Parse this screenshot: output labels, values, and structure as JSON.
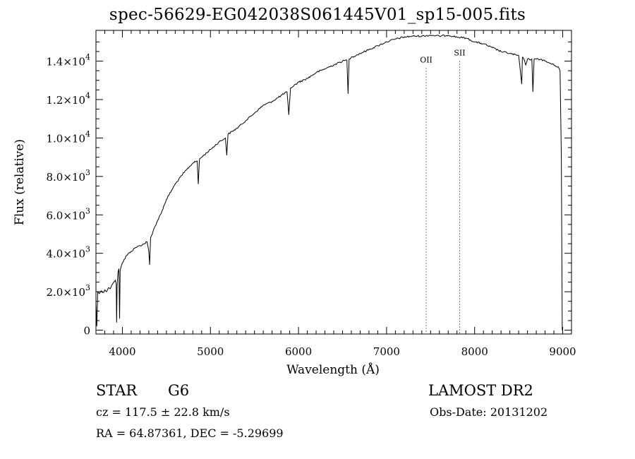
{
  "chart_data": {
    "type": "line",
    "title": "spec-56629-EG042038S061445V01_sp15-005.fits",
    "xlabel": "Wavelength (Å)",
    "ylabel": "Flux (relative)",
    "xlim": [
      3700,
      9100
    ],
    "ylim": [
      -200,
      15600
    ],
    "x_ticks": [
      4000,
      5000,
      6000,
      7000,
      8000,
      9000
    ],
    "x_tick_labels": [
      "4000",
      "5000",
      "6000",
      "7000",
      "8000",
      "9000"
    ],
    "y_ticks": [
      0,
      2000,
      4000,
      6000,
      8000,
      10000,
      12000,
      14000
    ],
    "y_tick_labels": [
      {
        "mant": "0",
        "exp": ""
      },
      {
        "mant": "2.0×10",
        "exp": "3"
      },
      {
        "mant": "4.0×10",
        "exp": "3"
      },
      {
        "mant": "6.0×10",
        "exp": "3"
      },
      {
        "mant": "8.0×10",
        "exp": "3"
      },
      {
        "mant": "1.0×10",
        "exp": "4"
      },
      {
        "mant": "1.2×10",
        "exp": "4"
      },
      {
        "mant": "1.4×10",
        "exp": "4"
      }
    ],
    "grid": false,
    "series": [
      {
        "x": [
          3700,
          3710,
          3720,
          3740,
          3760,
          3780,
          3800,
          3820,
          3840,
          3860,
          3880,
          3900,
          3920,
          3930,
          3935,
          3940,
          3950,
          3960,
          3968,
          3975,
          3985,
          4000,
          4050,
          4100,
          4150,
          4200,
          4250,
          4280,
          4300,
          4310,
          4320,
          4340,
          4360,
          4400,
          4450,
          4500,
          4600,
          4700,
          4800,
          4850,
          4862,
          4875,
          4900,
          5000,
          5100,
          5170,
          5185,
          5200,
          5300,
          5400,
          5500,
          5600,
          5700,
          5800,
          5870,
          5890,
          5910,
          6000,
          6100,
          6200,
          6300,
          6400,
          6500,
          6550,
          6563,
          6575,
          6600,
          6700,
          6800,
          6900,
          7000,
          7100,
          7200,
          7300,
          7400,
          7500,
          7600,
          7700,
          7800,
          7900,
          8000,
          8100,
          8200,
          8300,
          8400,
          8480,
          8500,
          8535,
          8542,
          8550,
          8580,
          8600,
          8650,
          8662,
          8675,
          8700,
          8750,
          8800,
          8850,
          8900,
          8950,
          8970,
          8985,
          8995
        ],
        "y": [
          1400,
          200,
          2000,
          1900,
          2050,
          1950,
          2100,
          2000,
          2200,
          2150,
          2350,
          2500,
          2600,
          2400,
          400,
          2300,
          3000,
          3200,
          600,
          3100,
          3300,
          3500,
          3900,
          4100,
          4300,
          4400,
          4500,
          4600,
          4100,
          3400,
          4800,
          5000,
          5300,
          5700,
          6200,
          6800,
          7600,
          8200,
          8700,
          8800,
          7600,
          8900,
          9000,
          9400,
          9800,
          10000,
          9100,
          10200,
          10500,
          10900,
          11300,
          11700,
          11900,
          12200,
          12400,
          11200,
          12600,
          12900,
          13100,
          13400,
          13600,
          13800,
          14000,
          14050,
          12300,
          14100,
          14200,
          14400,
          14600,
          14800,
          15000,
          15150,
          15250,
          15300,
          15300,
          15350,
          15300,
          15350,
          15250,
          15200,
          15000,
          14900,
          14700,
          14500,
          14400,
          14300,
          14300,
          12800,
          14200,
          14200,
          13800,
          14100,
          14100,
          12400,
          14100,
          14100,
          14100,
          14000,
          13900,
          13800,
          13700,
          13500,
          9000,
          0
        ]
      }
    ],
    "lines": [
      {
        "label": "OII",
        "x": 7450,
        "label_y": 13930
      },
      {
        "label": "SII",
        "x": 7830,
        "label_y": 14290
      }
    ]
  },
  "footer": {
    "obj_class": "STAR",
    "obj_subclass": "G6",
    "survey": "LAMOST DR2",
    "cz": "cz = 117.5 ± 22.8 km/s",
    "obs_date": "Obs-Date: 20131202",
    "radec": "RA =  64.87361, DEC =  -5.29699"
  }
}
